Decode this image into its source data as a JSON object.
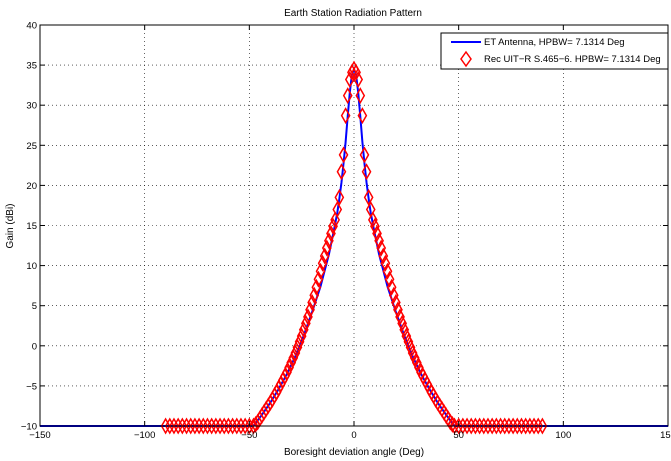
{
  "chart_data": {
    "type": "line",
    "title": "Earth Station Radiation Pattern",
    "xlabel": "Boresight deviation angle (Deg)",
    "ylabel": "Gain (dBi)",
    "xlim": [
      -150,
      150
    ],
    "ylim": [
      -10,
      40
    ],
    "xticks": [
      -150,
      -100,
      -50,
      0,
      50,
      100,
      150
    ],
    "xtick_labels": [
      "−150",
      "−100",
      "−50",
      "0",
      "50",
      "100",
      "150"
    ],
    "yticks": [
      -10,
      -5,
      0,
      5,
      10,
      15,
      20,
      25,
      30,
      35,
      40
    ],
    "ytick_labels": [
      "−10",
      "−5",
      "0",
      "5",
      "10",
      "15",
      "20",
      "25",
      "30",
      "35",
      "40"
    ],
    "grid": true,
    "legend_position": "top-right",
    "series": [
      {
        "name": "ET Antenna, HPBW= 7.1314 Deg",
        "style": "line",
        "color": "#0000ff",
        "x": [
          -150,
          -48,
          -44,
          -40,
          -36,
          -32,
          -28,
          -24,
          -20,
          -16,
          -12,
          -10,
          -8,
          -7,
          -6,
          -5,
          -4,
          -3,
          -2,
          -1,
          0,
          1,
          2,
          3,
          4,
          5,
          6,
          7,
          8,
          10,
          12,
          16,
          20,
          24,
          28,
          32,
          36,
          40,
          44,
          48,
          150
        ],
        "y": [
          -10,
          -10,
          -8.6,
          -7.1,
          -5.4,
          -3.5,
          -1.3,
          1.3,
          4.2,
          7.4,
          11.4,
          13.9,
          16.6,
          18.3,
          20.3,
          22.7,
          25.4,
          28.6,
          31.6,
          33.8,
          34.5,
          33.8,
          31.6,
          28.6,
          25.4,
          22.7,
          20.3,
          18.3,
          16.6,
          13.9,
          11.4,
          7.4,
          4.2,
          1.3,
          -1.3,
          -3.5,
          -5.4,
          -7.1,
          -8.6,
          -10,
          -10
        ]
      },
      {
        "name": "Rec UIT−R S.465−6. HPBW= 7.1314 Deg",
        "style": "diamond-markers",
        "color": "#ff0000",
        "x": [
          -90,
          -88,
          -86,
          -84,
          -82,
          -80,
          -78,
          -76,
          -74,
          -72,
          -70,
          -68,
          -66,
          -64,
          -62,
          -60,
          -58,
          -56,
          -54,
          -52,
          -50,
          -48,
          -47,
          -46,
          -45,
          -44,
          -43,
          -42,
          -41,
          -40,
          -39,
          -38,
          -37,
          -36,
          -35,
          -34,
          -33,
          -32,
          -31,
          -30,
          -29,
          -28,
          -27,
          -26,
          -25,
          -24,
          -23,
          -22,
          -21,
          -20,
          -19,
          -18,
          -17,
          -16,
          -15,
          -14,
          -13,
          -12,
          -11,
          -10,
          -9,
          -8,
          -7,
          -6,
          -5,
          -4,
          -3,
          -2,
          -1,
          0,
          1,
          2,
          3,
          4,
          5,
          6,
          7,
          8,
          9,
          10,
          11,
          12,
          13,
          14,
          15,
          16,
          17,
          18,
          19,
          20,
          21,
          22,
          23,
          24,
          25,
          26,
          27,
          28,
          29,
          30,
          31,
          32,
          33,
          34,
          35,
          36,
          37,
          38,
          39,
          40,
          41,
          42,
          43,
          44,
          45,
          46,
          47,
          48,
          50,
          52,
          54,
          56,
          58,
          60,
          62,
          64,
          66,
          68,
          70,
          72,
          74,
          76,
          78,
          80,
          82,
          84,
          86,
          88,
          90
        ],
        "y": [
          -10,
          -10,
          -10,
          -10,
          -10,
          -10,
          -10,
          -10,
          -10,
          -10,
          -10,
          -10,
          -10,
          -10,
          -10,
          -10,
          -10,
          -10,
          -10,
          -10,
          -10,
          -10,
          -9.8,
          -9.5,
          -9.1,
          -8.7,
          -8.3,
          -7.9,
          -7.5,
          -7.1,
          -6.7,
          -6.2,
          -5.8,
          -5.3,
          -4.8,
          -4.3,
          -3.8,
          -3.3,
          -2.7,
          -2.1,
          -1.5,
          -0.9,
          -0.2,
          0.5,
          1.2,
          2,
          2.8,
          3.6,
          4.5,
          5.4,
          6.3,
          7.3,
          8.3,
          9.3,
          10.3,
          11.2,
          12.2,
          13.1,
          14,
          14.9,
          15.7,
          17,
          18.5,
          21.7,
          23.8,
          28.7,
          31.2,
          33.2,
          34.1,
          34.5,
          34.1,
          33.2,
          31.2,
          28.7,
          23.8,
          21.7,
          18.5,
          17,
          15.7,
          14.9,
          14,
          13.1,
          12.2,
          11.2,
          10.3,
          9.3,
          8.3,
          7.3,
          6.3,
          5.4,
          4.5,
          3.6,
          2.8,
          2,
          1.2,
          0.5,
          -0.2,
          -0.9,
          -1.5,
          -2.1,
          -2.7,
          -3.3,
          -3.8,
          -4.3,
          -4.8,
          -5.3,
          -5.8,
          -6.2,
          -6.7,
          -7.1,
          -7.5,
          -7.9,
          -8.3,
          -8.7,
          -9.1,
          -9.5,
          -9.8,
          -10,
          -10,
          -10,
          -10,
          -10,
          -10,
          -10,
          -10,
          -10,
          -10,
          -10,
          -10,
          -10,
          -10,
          -10,
          -10,
          -10,
          -10,
          -10,
          -10,
          -10,
          -10
        ]
      }
    ]
  }
}
